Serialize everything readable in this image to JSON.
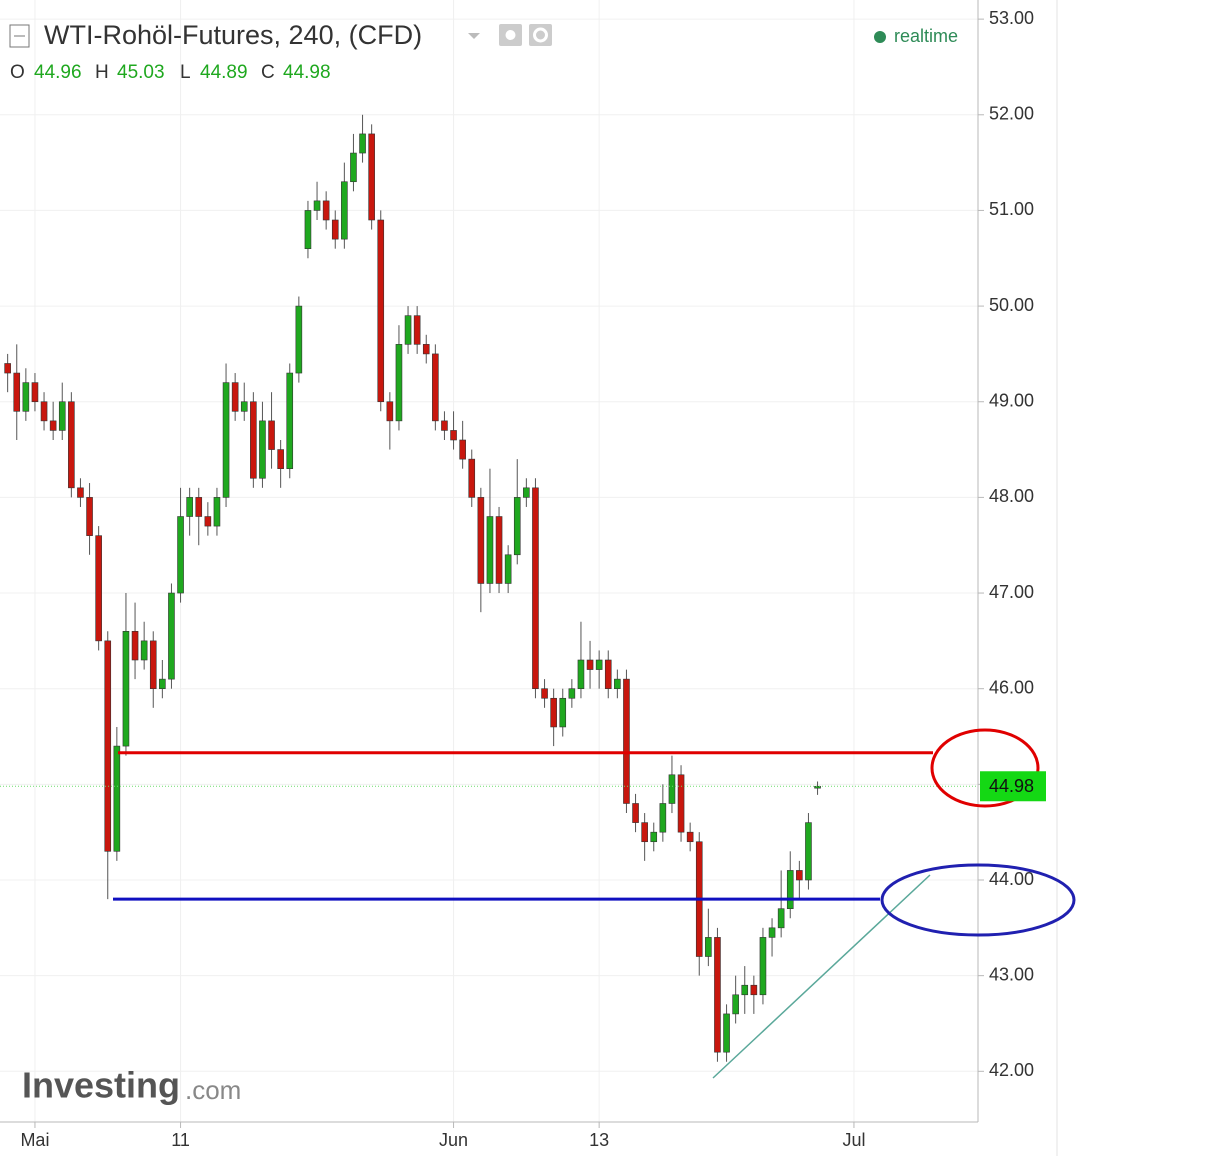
{
  "chart_data": {
    "type": "candlestick",
    "title": "WTI-Rohöl-Futures, 240, (CFD)",
    "ohlc_labels": [
      "O",
      "H",
      "L",
      "C"
    ],
    "status": "realtime",
    "watermark": [
      "Investing",
      ".com"
    ],
    "up_color": "#1fa81f",
    "down_color": "#c8170e",
    "grid": true,
    "ylim": [
      41.47,
      53.2
    ],
    "yticks": [
      {
        "value": 42,
        "label": "42.00"
      },
      {
        "value": 43,
        "label": "43.00"
      },
      {
        "value": 44,
        "label": "44.00"
      },
      {
        "value": 45,
        "label": "45.00"
      },
      {
        "value": 46,
        "label": "46.00"
      },
      {
        "value": 47,
        "label": "47.00"
      },
      {
        "value": 48,
        "label": "48.00"
      },
      {
        "value": 49,
        "label": "49.00"
      },
      {
        "value": 50,
        "label": "50.00"
      },
      {
        "value": 51,
        "label": "51.00"
      },
      {
        "value": 52,
        "label": "52.00"
      },
      {
        "value": 53,
        "label": "53.00"
      }
    ],
    "hlines": [
      {
        "value": 45.33,
        "color": "#e00000"
      },
      {
        "value": 43.8,
        "color": "#1010c0"
      }
    ],
    "categories": [
      null,
      null,
      null,
      null,
      "Mai",
      null,
      null,
      null,
      null,
      null,
      null,
      null,
      null,
      null,
      null,
      null,
      null,
      null,
      null,
      null,
      "11",
      null,
      null,
      null,
      null,
      null,
      null,
      null,
      null,
      null,
      null,
      null,
      null,
      null,
      null,
      null,
      null,
      null,
      null,
      null,
      null,
      null,
      null,
      null,
      null,
      null,
      null,
      null,
      null,
      null,
      "Jun",
      null,
      null,
      null,
      null,
      null,
      null,
      null,
      null,
      null,
      null,
      null,
      null,
      null,
      null,
      null,
      "13",
      null,
      null,
      null,
      null,
      null,
      null,
      null,
      null,
      null,
      null,
      null,
      null,
      null,
      null,
      null,
      null,
      null,
      null,
      null,
      null,
      null,
      null,
      null,
      null,
      null,
      null,
      null,
      "Jul",
      null,
      null,
      null,
      null,
      null,
      null,
      null,
      null,
      null,
      null,
      null,
      null,
      null
    ],
    "open": [
      null,
      49.4,
      49.3,
      48.9,
      49.2,
      49.0,
      48.8,
      48.7,
      49.0,
      48.1,
      48.0,
      47.6,
      46.5,
      44.3,
      45.4,
      46.6,
      46.3,
      46.5,
      46.0,
      46.1,
      47.0,
      47.8,
      48.0,
      47.8,
      47.7,
      48.0,
      49.2,
      48.9,
      49.0,
      48.2,
      48.8,
      48.5,
      48.3,
      49.3,
      50.6,
      51.0,
      51.1,
      50.9,
      50.7,
      51.3,
      51.6,
      51.8,
      50.9,
      49.0,
      48.8,
      49.6,
      49.9,
      49.6,
      49.5,
      48.8,
      48.7,
      48.6,
      48.4,
      48.0,
      47.1,
      47.8,
      47.1,
      47.4,
      48.0,
      48.1,
      46.0,
      45.9,
      45.6,
      45.9,
      46.0,
      46.3,
      46.2,
      46.3,
      46.0,
      46.1,
      44.8,
      44.6,
      44.4,
      44.5,
      44.8,
      45.1,
      44.5,
      44.4,
      43.2,
      43.4,
      42.2,
      42.6,
      42.8,
      42.9,
      42.8,
      43.4,
      43.5,
      43.7,
      44.1,
      44.0,
      44.96,
      null,
      null,
      null,
      null,
      null,
      null,
      null,
      null,
      null,
      null,
      null,
      null,
      null,
      null,
      null,
      null,
      null
    ],
    "high": [
      null,
      49.5,
      49.6,
      49.35,
      49.3,
      49.1,
      49.0,
      49.2,
      49.1,
      48.2,
      48.15,
      47.7,
      46.6,
      45.6,
      47.0,
      46.9,
      46.7,
      46.6,
      46.3,
      47.1,
      48.1,
      48.1,
      48.1,
      47.95,
      48.1,
      49.4,
      49.3,
      49.2,
      49.1,
      49.0,
      49.1,
      48.6,
      49.4,
      50.1,
      51.1,
      51.3,
      51.2,
      51.0,
      51.5,
      51.8,
      52.0,
      51.9,
      51.0,
      49.1,
      49.8,
      50.0,
      50.0,
      49.7,
      49.6,
      48.9,
      48.9,
      48.8,
      48.5,
      48.1,
      48.3,
      47.9,
      47.5,
      48.4,
      48.2,
      48.2,
      46.1,
      46.0,
      46.0,
      46.1,
      46.7,
      46.5,
      46.4,
      46.4,
      46.2,
      46.2,
      44.9,
      44.7,
      44.6,
      45.0,
      45.3,
      45.2,
      44.6,
      44.5,
      43.7,
      43.5,
      42.7,
      43.0,
      43.1,
      43.0,
      43.5,
      43.6,
      44.1,
      44.3,
      44.2,
      44.7,
      45.03,
      null,
      null,
      null,
      null,
      null,
      null,
      null,
      null,
      null,
      null,
      null,
      null,
      null,
      null,
      null,
      null,
      null
    ],
    "low": [
      null,
      49.1,
      48.6,
      48.8,
      48.9,
      48.7,
      48.6,
      48.6,
      48.0,
      47.9,
      47.4,
      46.4,
      43.8,
      44.2,
      45.3,
      46.1,
      46.2,
      45.8,
      45.9,
      46.0,
      46.9,
      47.6,
      47.5,
      47.6,
      47.6,
      47.9,
      48.8,
      48.8,
      48.1,
      48.1,
      48.3,
      48.1,
      48.2,
      49.2,
      50.5,
      50.9,
      50.8,
      50.6,
      50.6,
      51.2,
      51.5,
      50.8,
      48.9,
      48.5,
      48.7,
      49.5,
      49.5,
      49.4,
      48.7,
      48.6,
      48.5,
      48.3,
      47.9,
      46.8,
      47.0,
      47.0,
      47.0,
      47.3,
      47.9,
      45.9,
      45.8,
      45.4,
      45.5,
      45.8,
      45.9,
      46.0,
      46.0,
      45.9,
      45.9,
      44.7,
      44.5,
      44.2,
      44.3,
      44.4,
      44.7,
      44.4,
      44.3,
      43.0,
      43.1,
      42.1,
      42.1,
      42.5,
      42.6,
      42.6,
      42.7,
      43.2,
      43.4,
      43.6,
      43.8,
      43.9,
      44.89,
      null,
      null,
      null,
      null,
      null,
      null,
      null,
      null,
      null,
      null,
      null,
      null,
      null,
      null,
      null,
      null,
      null
    ],
    "close": [
      null,
      49.3,
      48.9,
      49.2,
      49.0,
      48.8,
      48.7,
      49.0,
      48.1,
      48.0,
      47.6,
      46.5,
      44.3,
      45.4,
      46.6,
      46.3,
      46.5,
      46.0,
      46.1,
      47.0,
      47.8,
      48.0,
      47.8,
      47.7,
      48.0,
      49.2,
      48.9,
      49.0,
      48.2,
      48.8,
      48.5,
      48.3,
      49.3,
      50.0,
      51.0,
      51.1,
      50.9,
      50.7,
      51.3,
      51.6,
      51.8,
      50.9,
      49.0,
      48.8,
      49.6,
      49.9,
      49.6,
      49.5,
      48.8,
      48.7,
      48.6,
      48.4,
      48.0,
      47.1,
      47.8,
      47.1,
      47.4,
      48.0,
      48.1,
      46.0,
      45.9,
      45.6,
      45.9,
      46.0,
      46.3,
      46.2,
      46.3,
      46.0,
      46.1,
      44.8,
      44.6,
      44.4,
      44.5,
      44.8,
      45.1,
      44.5,
      44.4,
      43.2,
      43.4,
      42.2,
      42.6,
      42.8,
      42.9,
      42.8,
      43.4,
      43.5,
      43.7,
      44.1,
      44.0,
      44.6,
      44.98,
      null,
      null,
      null,
      null,
      null,
      null,
      null,
      null,
      null,
      null,
      null,
      null,
      null,
      null,
      null,
      null,
      null
    ]
  }
}
